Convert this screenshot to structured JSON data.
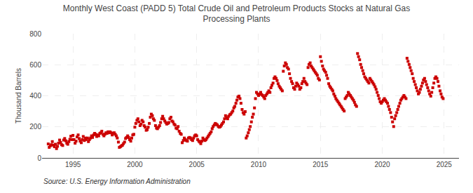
{
  "chart_data": {
    "type": "scatter",
    "title": "Monthly West Coast (PADD 5) Total Crude Oil and Petroleum Products Stocks at Natural Gas\nProcessing Plants",
    "ylabel": "Thousand Barrels",
    "annotations": [
      "Source: U.S. Energy Information Administration"
    ],
    "color": "#cc0000",
    "marker": "square",
    "grid": true,
    "xlim": [
      1992.5,
      2026.2
    ],
    "ylim": [
      0,
      800
    ],
    "yticks": [
      0,
      200,
      400,
      600,
      800
    ],
    "xticks": [
      1995,
      2000,
      2005,
      2010,
      2015,
      2020,
      2025
    ],
    "x": [
      1993.0,
      1993.08,
      1993.17,
      1993.25,
      1993.33,
      1993.42,
      1993.5,
      1993.58,
      1993.67,
      1993.75,
      1993.83,
      1993.92,
      1994.0,
      1994.08,
      1994.17,
      1994.25,
      1994.33,
      1994.42,
      1994.5,
      1994.58,
      1994.67,
      1994.75,
      1994.83,
      1994.92,
      1995.0,
      1995.08,
      1995.17,
      1995.25,
      1995.33,
      1995.42,
      1995.5,
      1995.58,
      1995.67,
      1995.75,
      1995.83,
      1995.92,
      1996.0,
      1996.08,
      1996.17,
      1996.25,
      1996.33,
      1996.42,
      1996.5,
      1996.58,
      1996.67,
      1996.75,
      1996.83,
      1996.92,
      1997.0,
      1997.08,
      1997.17,
      1997.25,
      1997.33,
      1997.42,
      1997.5,
      1997.58,
      1997.67,
      1997.75,
      1997.83,
      1997.92,
      1998.0,
      1998.08,
      1998.17,
      1998.25,
      1998.33,
      1998.42,
      1998.5,
      1998.58,
      1998.67,
      1998.75,
      1998.83,
      1998.92,
      1999.0,
      1999.08,
      1999.17,
      1999.25,
      1999.33,
      1999.42,
      1999.5,
      1999.58,
      1999.67,
      1999.75,
      1999.83,
      1999.92,
      2000.0,
      2000.08,
      2000.17,
      2000.25,
      2000.33,
      2000.42,
      2000.5,
      2000.58,
      2000.67,
      2000.75,
      2000.83,
      2000.92,
      2001.0,
      2001.08,
      2001.17,
      2001.25,
      2001.33,
      2001.42,
      2001.5,
      2001.58,
      2001.67,
      2001.75,
      2001.83,
      2001.92,
      2002.0,
      2002.08,
      2002.17,
      2002.25,
      2002.33,
      2002.42,
      2002.5,
      2002.58,
      2002.67,
      2002.75,
      2002.83,
      2002.92,
      2003.0,
      2003.08,
      2003.17,
      2003.25,
      2003.33,
      2003.42,
      2003.5,
      2003.58,
      2003.67,
      2003.75,
      2003.83,
      2003.92,
      2004.0,
      2004.08,
      2004.17,
      2004.25,
      2004.33,
      2004.42,
      2004.5,
      2004.58,
      2004.67,
      2004.75,
      2004.83,
      2004.92,
      2005.0,
      2005.08,
      2005.17,
      2005.25,
      2005.33,
      2005.42,
      2005.5,
      2005.58,
      2005.67,
      2005.75,
      2005.83,
      2005.92,
      2006.0,
      2006.08,
      2006.17,
      2006.25,
      2006.33,
      2006.42,
      2006.5,
      2006.58,
      2006.67,
      2006.75,
      2006.83,
      2006.92,
      2007.0,
      2007.08,
      2007.17,
      2007.25,
      2007.33,
      2007.42,
      2007.5,
      2007.58,
      2007.67,
      2007.75,
      2007.83,
      2007.92,
      2008.0,
      2008.08,
      2008.17,
      2008.25,
      2008.33,
      2008.42,
      2008.5,
      2008.58,
      2008.67,
      2008.75,
      2008.83,
      2008.92,
      2009.0,
      2009.08,
      2009.17,
      2009.25,
      2009.33,
      2009.42,
      2009.5,
      2009.58,
      2009.67,
      2009.75,
      2009.83,
      2009.92,
      2010.0,
      2010.08,
      2010.17,
      2010.25,
      2010.33,
      2010.42,
      2010.5,
      2010.58,
      2010.67,
      2010.75,
      2010.83,
      2010.92,
      2011.0,
      2011.08,
      2011.17,
      2011.25,
      2011.33,
      2011.42,
      2011.5,
      2011.58,
      2011.67,
      2011.75,
      2011.83,
      2011.92,
      2012.0,
      2012.08,
      2012.17,
      2012.25,
      2012.33,
      2012.42,
      2012.5,
      2012.58,
      2012.67,
      2012.75,
      2012.83,
      2012.92,
      2013.0,
      2013.08,
      2013.17,
      2013.25,
      2013.33,
      2013.42,
      2013.5,
      2013.58,
      2013.67,
      2013.75,
      2013.83,
      2013.92,
      2014.0,
      2014.08,
      2014.17,
      2014.25,
      2014.33,
      2014.42,
      2014.5,
      2014.58,
      2014.67,
      2014.75,
      2014.83,
      2014.92,
      2015.0,
      2015.08,
      2015.17,
      2015.25,
      2015.33,
      2015.42,
      2015.5,
      2015.58,
      2015.67,
      2015.75,
      2015.83,
      2015.92,
      2016.0,
      2016.08,
      2016.17,
      2016.25,
      2016.33,
      2016.42,
      2016.5,
      2016.58,
      2016.67,
      2016.75,
      2016.83,
      2016.92,
      2017.0,
      2017.08,
      2017.17,
      2017.25,
      2017.33,
      2017.42,
      2017.5,
      2017.58,
      2017.67,
      2017.75,
      2017.83,
      2017.92,
      2018.0,
      2018.08,
      2018.17,
      2018.25,
      2018.33,
      2018.42,
      2018.5,
      2018.58,
      2018.67,
      2018.75,
      2018.83,
      2018.92,
      2019.0,
      2019.08,
      2019.17,
      2019.25,
      2019.33,
      2019.42,
      2019.5,
      2019.58,
      2019.67,
      2019.75,
      2019.83,
      2019.92,
      2020.0,
      2020.08,
      2020.17,
      2020.25,
      2020.33,
      2020.42,
      2020.5,
      2020.58,
      2020.67,
      2020.75,
      2020.83,
      2020.92,
      2021.0,
      2021.08,
      2021.17,
      2021.25,
      2021.33,
      2021.42,
      2021.5,
      2021.58,
      2021.67,
      2021.75,
      2021.83,
      2021.92,
      2022.0,
      2022.08,
      2022.17,
      2022.25,
      2022.33,
      2022.42,
      2022.5,
      2022.58,
      2022.67,
      2022.75,
      2022.83,
      2022.92,
      2023.0,
      2023.08,
      2023.17,
      2023.25,
      2023.33,
      2023.42,
      2023.5,
      2023.58,
      2023.67,
      2023.75,
      2023.83,
      2023.92,
      2024.0,
      2024.08,
      2024.17,
      2024.25,
      2024.33,
      2024.42,
      2024.5,
      2024.58,
      2024.67,
      2024.75,
      2024.83,
      2024.92
    ],
    "values": [
      90,
      68,
      78,
      85,
      105,
      82,
      72,
      88,
      60,
      75,
      95,
      115,
      100,
      85,
      80,
      115,
      125,
      110,
      95,
      88,
      105,
      120,
      140,
      118,
      145,
      118,
      95,
      108,
      135,
      148,
      125,
      108,
      98,
      118,
      138,
      112,
      128,
      118,
      128,
      105,
      118,
      128,
      142,
      132,
      148,
      158,
      152,
      138,
      148,
      142,
      158,
      162,
      172,
      152,
      142,
      152,
      162,
      158,
      168,
      162,
      168,
      162,
      148,
      158,
      162,
      152,
      142,
      128,
      102,
      68,
      72,
      78,
      82,
      92,
      102,
      125,
      132,
      142,
      132,
      118,
      108,
      128,
      148,
      152,
      198,
      222,
      242,
      252,
      232,
      208,
      218,
      242,
      232,
      208,
      198,
      178,
      182,
      198,
      222,
      262,
      282,
      272,
      252,
      242,
      208,
      192,
      188,
      198,
      208,
      228,
      252,
      268,
      252,
      238,
      228,
      218,
      222,
      228,
      252,
      262,
      238,
      232,
      218,
      212,
      192,
      188,
      202,
      172,
      158,
      152,
      98,
      112,
      128,
      118,
      112,
      108,
      128,
      132,
      128,
      118,
      112,
      128,
      142,
      148,
      142,
      118,
      108,
      102,
      92,
      108,
      128,
      118,
      112,
      118,
      128,
      138,
      148,
      158,
      168,
      188,
      202,
      212,
      222,
      218,
      212,
      202,
      198,
      202,
      212,
      222,
      232,
      252,
      272,
      258,
      252,
      268,
      278,
      282,
      292,
      302,
      322,
      332,
      352,
      372,
      392,
      398,
      382,
      352,
      312,
      292,
      282,
      298,
      128,
      142,
      162,
      182,
      202,
      232,
      262,
      282,
      322,
      382,
      422,
      412,
      402,
      412,
      422,
      408,
      402,
      392,
      382,
      402,
      412,
      422,
      432,
      422,
      452,
      468,
      482,
      512,
      522,
      512,
      498,
      478,
      462,
      452,
      442,
      432,
      558,
      592,
      612,
      602,
      582,
      572,
      542,
      512,
      492,
      478,
      452,
      442,
      462,
      482,
      472,
      462,
      442,
      452,
      478,
      492,
      512,
      492,
      482,
      472,
      582,
      602,
      612,
      592,
      582,
      572,
      562,
      552,
      542,
      532,
      512,
      502,
      652,
      622,
      592,
      572,
      562,
      552,
      532,
      512,
      478,
      462,
      452,
      442,
      432,
      412,
      398,
      382,
      372,
      362,
      352,
      342,
      332,
      322,
      312,
      302,
      382,
      392,
      402,
      422,
      412,
      402,
      392,
      382,
      372,
      358,
      342,
      332,
      672,
      652,
      632,
      602,
      582,
      562,
      542,
      522,
      512,
      502,
      492,
      482,
      512,
      502,
      492,
      482,
      472,
      458,
      442,
      422,
      402,
      382,
      362,
      352,
      362,
      372,
      382,
      372,
      362,
      352,
      332,
      312,
      292,
      262,
      232,
      202,
      252,
      272,
      292,
      312,
      332,
      352,
      372,
      382,
      392,
      402,
      392,
      382,
      642,
      622,
      602,
      582,
      562,
      542,
      512,
      492,
      472,
      452,
      432,
      412,
      422,
      442,
      462,
      482,
      502,
      512,
      492,
      472,
      452,
      432,
      412,
      398,
      422,
      452,
      482,
      512,
      522,
      512,
      492,
      462,
      432,
      412,
      392,
      382
    ]
  }
}
